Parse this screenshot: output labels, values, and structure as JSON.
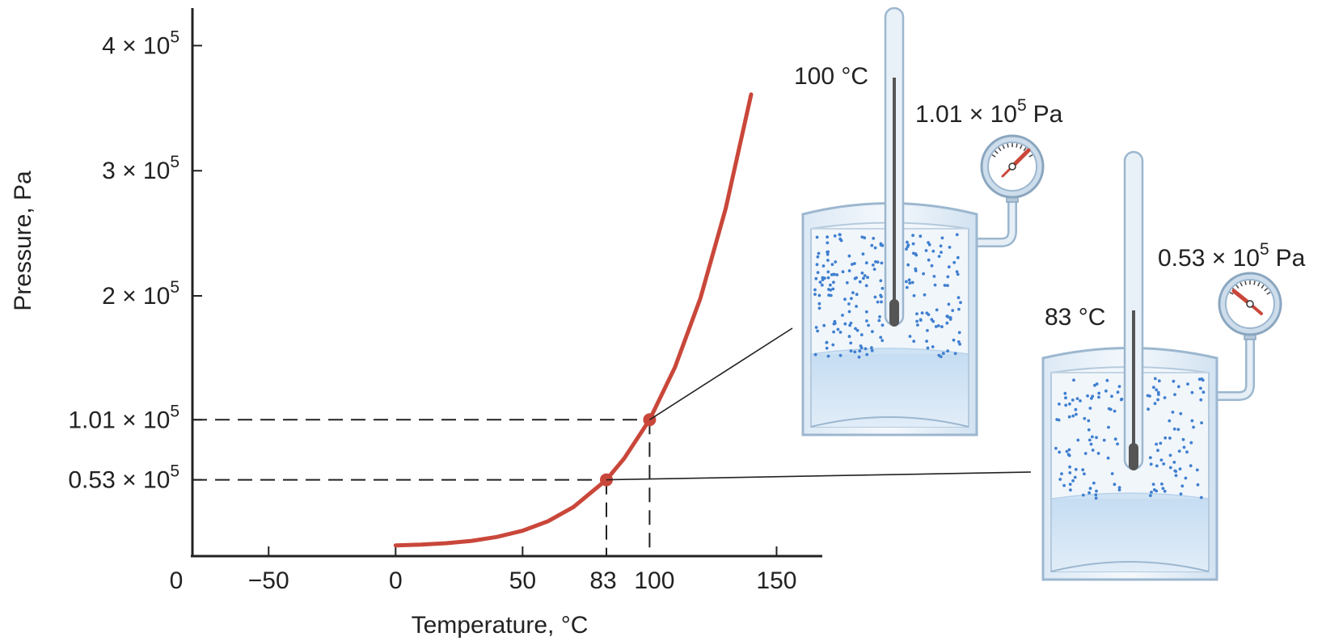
{
  "chart_data": {
    "type": "line",
    "xlabel": "Temperature, °C",
    "ylabel": "Pressure, Pa",
    "xlim": [
      -80,
      168
    ],
    "ylim": [
      -8000.0,
      430000.0
    ],
    "x_ticks": [
      {
        "value": -50,
        "label": "−50"
      },
      {
        "value": 0,
        "label": "0"
      },
      {
        "value": 50,
        "label": "50"
      },
      {
        "value": 150,
        "label": "150"
      }
    ],
    "x_origin_label": "0",
    "y_ticks": [
      {
        "value": 400000,
        "mant": "4 × 10",
        "exp": "5"
      },
      {
        "value": 300000,
        "mant": "3 × 10",
        "exp": "5"
      },
      {
        "value": 200000,
        "mant": "2 × 10",
        "exp": "5"
      },
      {
        "value": 101000,
        "mant": "1.01 × 10",
        "exp": "5"
      },
      {
        "value": 53000,
        "mant": "0.53 × 10",
        "exp": "5"
      }
    ],
    "series": [
      {
        "color": "#c9473a",
        "x": [
          0,
          10,
          20,
          30,
          40,
          50,
          60,
          70,
          83,
          90,
          100,
          110,
          120,
          130,
          140
        ],
        "y": [
          600,
          1230,
          2340,
          4240,
          7380,
          12300,
          19900,
          31200,
          53000,
          70100,
          101000,
          143000,
          198000,
          270000,
          361000
        ]
      }
    ],
    "highlight_points": [
      {
        "x": 83,
        "y": 53000,
        "x_label": "83",
        "container": "right"
      },
      {
        "x": 100,
        "y": 101000,
        "x_label": "100",
        "container": "left"
      }
    ],
    "grid": false,
    "legend": "none"
  },
  "illustration": {
    "left_container": {
      "temperature": "100 °C",
      "pressure_mant": "1.01 × 10",
      "pressure_exp": "5",
      "pressure_unit": "Pa"
    },
    "right_container": {
      "temperature": "83 °C",
      "pressure_mant": "0.53 × 10",
      "pressure_exp": "5",
      "pressure_unit": "Pa"
    },
    "colors": {
      "curve": "#c9473a",
      "water": "#cfe3f4",
      "vapor_dots": "#3f7fd0",
      "vessel_outline": "#9cb7cf",
      "gauge_needle": "#c9473a"
    }
  }
}
